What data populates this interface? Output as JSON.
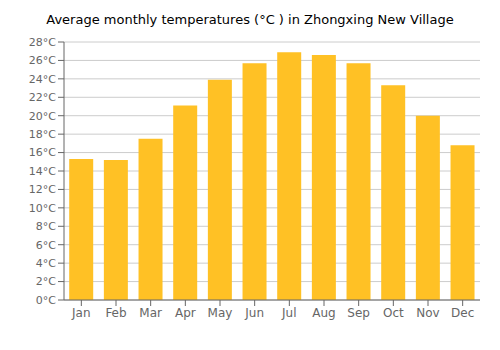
{
  "chart_data": {
    "type": "bar",
    "title": "Average monthly temperatures (°C ) in Zhongxing New Village",
    "categories": [
      "Jan",
      "Feb",
      "Mar",
      "Apr",
      "May",
      "Jun",
      "Jul",
      "Aug",
      "Sep",
      "Oct",
      "Nov",
      "Dec"
    ],
    "values": [
      15.3,
      15.2,
      17.5,
      21.1,
      23.9,
      25.7,
      26.9,
      26.6,
      25.7,
      23.3,
      20.0,
      16.8
    ],
    "color": "#FFC125",
    "ylim": [
      0,
      28
    ],
    "yticks": [
      {
        "value": 0,
        "label": "0°C"
      },
      {
        "value": 2,
        "label": "2°C"
      },
      {
        "value": 4,
        "label": "4°C"
      },
      {
        "value": 6,
        "label": "6°C"
      },
      {
        "value": 8,
        "label": "8°C"
      },
      {
        "value": 10,
        "label": "10°C"
      },
      {
        "value": 12,
        "label": "12°C"
      },
      {
        "value": 14,
        "label": "14°C"
      },
      {
        "value": 16,
        "label": "16°C"
      },
      {
        "value": 18,
        "label": "18°C"
      },
      {
        "value": 20,
        "label": "20°C"
      },
      {
        "value": 22,
        "label": "22°C"
      },
      {
        "value": 24,
        "label": "24°C"
      },
      {
        "value": 26,
        "label": "26°C"
      },
      {
        "value": 28,
        "label": "28°C"
      }
    ],
    "grid": true
  }
}
